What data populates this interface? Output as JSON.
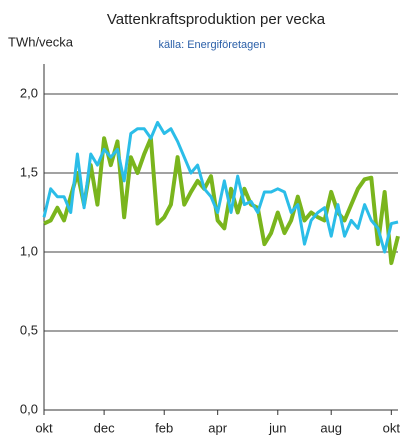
{
  "chart_data": {
    "type": "line",
    "title": "Vattenkraftsproduktion  per vecka",
    "subtitle": "källa: Energiföretagen",
    "y_label": "TWh/vecka",
    "categories": [
      "okt",
      null,
      null,
      null,
      null,
      null,
      null,
      null,
      null,
      "dec",
      null,
      null,
      null,
      null,
      null,
      null,
      null,
      null,
      "feb",
      null,
      null,
      null,
      null,
      null,
      null,
      null,
      "apr",
      null,
      null,
      null,
      null,
      null,
      null,
      null,
      null,
      "jun",
      null,
      null,
      null,
      null,
      null,
      null,
      null,
      "aug",
      null,
      null,
      null,
      null,
      null,
      null,
      null,
      null,
      "okt",
      null
    ],
    "series": [
      {
        "name": null,
        "color": "#7ab51d",
        "values": [
          1.18,
          1.2,
          1.28,
          1.2,
          1.35,
          1.5,
          1.3,
          1.55,
          1.3,
          1.72,
          1.55,
          1.7,
          1.22,
          1.6,
          1.5,
          1.62,
          1.72,
          1.18,
          1.22,
          1.3,
          1.6,
          1.3,
          1.38,
          1.45,
          1.4,
          1.48,
          1.2,
          1.15,
          1.4,
          1.25,
          1.4,
          1.3,
          1.28,
          1.05,
          1.12,
          1.25,
          1.12,
          1.2,
          1.35,
          1.2,
          1.25,
          1.22,
          1.2,
          1.38,
          1.25,
          1.2,
          1.3,
          1.4,
          1.46,
          1.47,
          1.05,
          1.38,
          0.93,
          1.1
        ]
      },
      {
        "name": null,
        "color": "#2bbde8",
        "values": [
          1.22,
          1.4,
          1.35,
          1.35,
          1.25,
          1.62,
          1.28,
          1.62,
          1.55,
          1.65,
          1.6,
          1.65,
          1.45,
          1.75,
          1.78,
          1.78,
          1.72,
          1.82,
          1.75,
          1.78,
          1.7,
          1.6,
          1.5,
          1.55,
          1.4,
          1.35,
          1.25,
          1.45,
          1.25,
          1.48,
          1.3,
          1.32,
          1.25,
          1.38,
          1.38,
          1.4,
          1.38,
          1.25,
          1.3,
          1.05,
          1.2,
          1.25,
          1.28,
          1.1,
          1.3,
          1.1,
          1.2,
          1.15,
          1.3,
          1.2,
          1.15,
          1.0,
          1.18,
          1.19
        ]
      }
    ],
    "ylim": [
      0,
      2
    ],
    "yticks": [
      {
        "value": 0,
        "label": "0,0"
      },
      {
        "value": 0.5,
        "label": "0,5"
      },
      {
        "value": 1,
        "label": "1,0"
      },
      {
        "value": 1.5,
        "label": "1,5"
      },
      {
        "value": 2,
        "label": "2,0"
      }
    ],
    "grid": true
  }
}
